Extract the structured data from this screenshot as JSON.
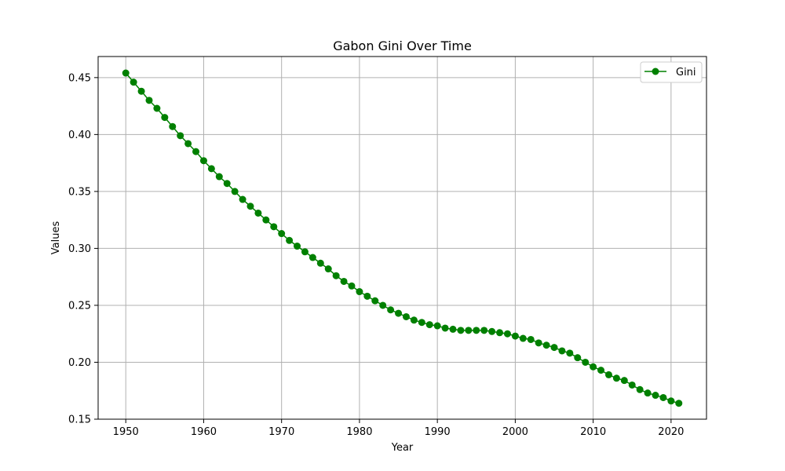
{
  "chart_data": {
    "type": "line",
    "title": "Gabon Gini Over Time",
    "xlabel": "Year",
    "ylabel": "Values",
    "xlim": [
      1946.45,
      2024.55
    ],
    "ylim": [
      0.15,
      0.4685
    ],
    "xticks": [
      1950,
      1960,
      1970,
      1980,
      1990,
      2000,
      2010,
      2020
    ],
    "yticks": [
      0.15,
      0.2,
      0.25,
      0.3,
      0.35,
      0.4,
      0.45
    ],
    "grid": true,
    "legend_position": "top-right",
    "series": [
      {
        "name": "Gini",
        "color": "#008000",
        "marker": "circle",
        "x": [
          1950,
          1951,
          1952,
          1953,
          1954,
          1955,
          1956,
          1957,
          1958,
          1959,
          1960,
          1961,
          1962,
          1963,
          1964,
          1965,
          1966,
          1967,
          1968,
          1969,
          1970,
          1971,
          1972,
          1973,
          1974,
          1975,
          1976,
          1977,
          1978,
          1979,
          1980,
          1981,
          1982,
          1983,
          1984,
          1985,
          1986,
          1987,
          1988,
          1989,
          1990,
          1991,
          1992,
          1993,
          1994,
          1995,
          1996,
          1997,
          1998,
          1999,
          2000,
          2001,
          2002,
          2003,
          2004,
          2005,
          2006,
          2007,
          2008,
          2009,
          2010,
          2011,
          2012,
          2013,
          2014,
          2015,
          2016,
          2017,
          2018,
          2019,
          2020,
          2021
        ],
        "y": [
          0.454,
          0.446,
          0.438,
          0.43,
          0.423,
          0.415,
          0.407,
          0.399,
          0.392,
          0.385,
          0.377,
          0.37,
          0.363,
          0.357,
          0.35,
          0.343,
          0.337,
          0.331,
          0.325,
          0.319,
          0.313,
          0.307,
          0.302,
          0.297,
          0.292,
          0.287,
          0.282,
          0.276,
          0.271,
          0.267,
          0.262,
          0.258,
          0.254,
          0.25,
          0.246,
          0.243,
          0.24,
          0.237,
          0.235,
          0.233,
          0.232,
          0.23,
          0.229,
          0.228,
          0.228,
          0.228,
          0.228,
          0.227,
          0.226,
          0.225,
          0.223,
          0.221,
          0.22,
          0.217,
          0.215,
          0.213,
          0.21,
          0.208,
          0.204,
          0.2,
          0.196,
          0.193,
          0.189,
          0.186,
          0.184,
          0.18,
          0.176,
          0.173,
          0.171,
          0.169,
          0.166,
          0.164
        ]
      }
    ]
  }
}
